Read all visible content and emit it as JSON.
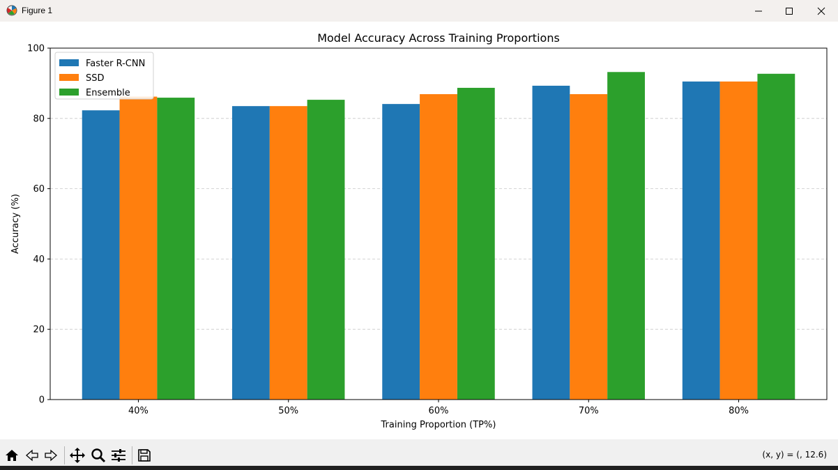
{
  "window": {
    "title": "Figure 1",
    "icons": {
      "app": "matplotlib-icon",
      "minimize": "minimize-icon",
      "maximize": "maximize-icon",
      "close": "close-icon"
    }
  },
  "toolbar": {
    "icons": [
      "home-icon",
      "back-arrow-icon",
      "forward-arrow-icon",
      "pan-move-icon",
      "zoom-magnifier-icon",
      "configure-subplots-icon",
      "save-floppy-icon"
    ],
    "coord_readout": "(x, y) = (, 12.6)"
  },
  "chart_data": {
    "type": "bar",
    "title": "Model Accuracy Across Training Proportions",
    "xlabel": "Training Proportion (TP%)",
    "ylabel": "Accuracy (%)",
    "categories": [
      "40%",
      "50%",
      "60%",
      "70%",
      "80%"
    ],
    "series": [
      {
        "name": "Faster R-CNN",
        "color": "#1f77b4",
        "values": [
          82.3,
          83.5,
          84.1,
          89.3,
          90.5
        ]
      },
      {
        "name": "SSD",
        "color": "#ff7f0e",
        "values": [
          86.2,
          83.5,
          86.9,
          86.9,
          90.5
        ]
      },
      {
        "name": "Ensemble",
        "color": "#2ca02c",
        "values": [
          85.9,
          85.3,
          88.7,
          93.2,
          92.7
        ]
      }
    ],
    "ylim": [
      0,
      100
    ],
    "yticks": [
      "0",
      "20",
      "40",
      "60",
      "80",
      "100"
    ],
    "grid": "y-dashed",
    "legend": "top-left"
  }
}
